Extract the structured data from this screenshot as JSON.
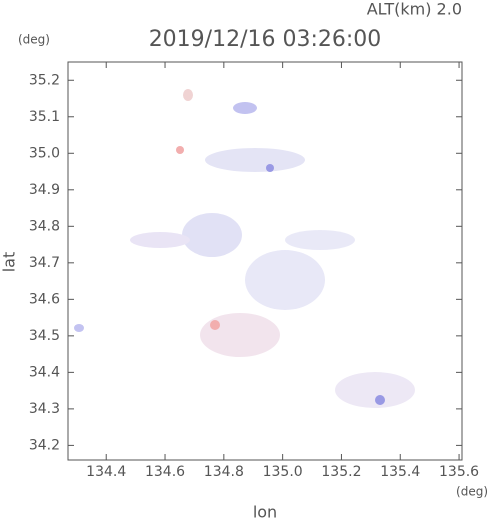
{
  "chart_data": {
    "type": "map",
    "title": "2019/12/16 03:26:00",
    "subtitle": "ALT(km) 2.0",
    "x_label": "lon",
    "y_label": "lat",
    "x_unit": "(deg)",
    "y_unit": "(deg)",
    "xlim": [
      134.27,
      135.61
    ],
    "ylim": [
      34.16,
      35.25
    ],
    "xticks": [
      134.4,
      134.6,
      134.8,
      {
        "value": 135,
        "label": "135.0"
      },
      135.2,
      135.4,
      135.6
    ],
    "yticks": [
      34.2,
      34.3,
      34.4,
      34.5,
      34.6,
      34.7,
      34.8,
      34.9,
      {
        "value": 35,
        "label": "35.0"
      },
      35.1,
      35.2
    ]
  }
}
